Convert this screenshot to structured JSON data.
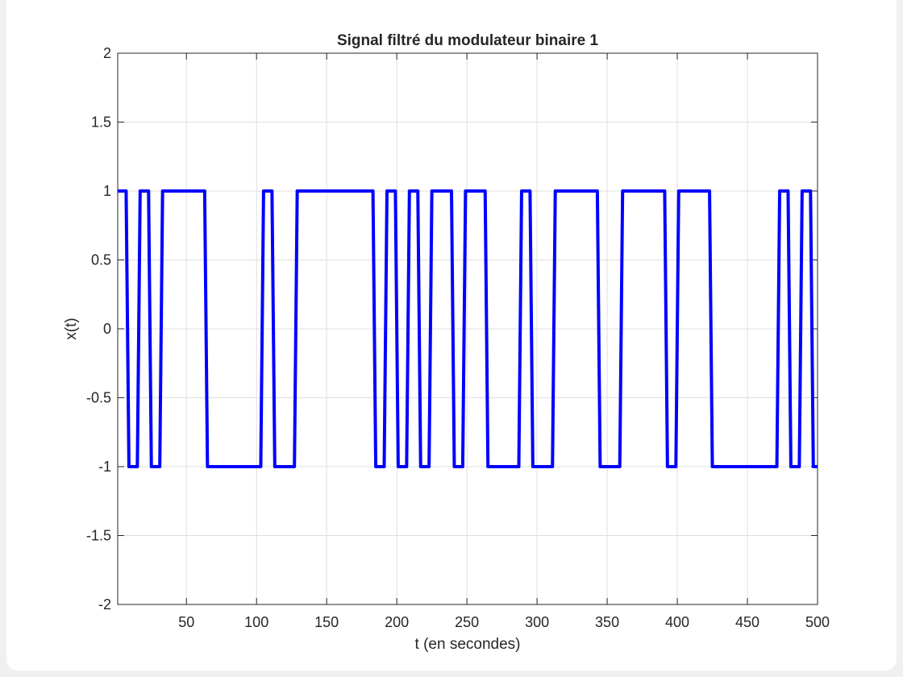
{
  "chart_data": {
    "type": "line",
    "title": "Signal filtré du modulateur binaire 1",
    "xlabel": "t (en secondes)",
    "ylabel": "x(t)",
    "xlim": [
      1,
      500
    ],
    "ylim": [
      -2,
      2
    ],
    "xticks": [
      50,
      100,
      150,
      200,
      250,
      300,
      350,
      400,
      450,
      500
    ],
    "xtick_labels": [
      "50",
      "100",
      "150",
      "200",
      "250",
      "300",
      "350",
      "400",
      "450",
      "500"
    ],
    "yticks": [
      -2,
      -1.5,
      -1,
      -0.5,
      0,
      0.5,
      1,
      1.5,
      2
    ],
    "ytick_labels": [
      "-2",
      "-1.5",
      "-1",
      "-0.5",
      "0",
      "0.5",
      "1",
      "1.5",
      "2"
    ],
    "grid": true,
    "series": [
      {
        "color": "#0000ff",
        "x": [
          1,
          7,
          9,
          15,
          17,
          23,
          25,
          31,
          33,
          63,
          65,
          103,
          105,
          111,
          113,
          127,
          129,
          183,
          185,
          191,
          193,
          199,
          201,
          207,
          209,
          215,
          217,
          223,
          225,
          239,
          241,
          247,
          249,
          263,
          265,
          287,
          289,
          295,
          297,
          311,
          313,
          343,
          345,
          359,
          361,
          391,
          393,
          399,
          401,
          423,
          425,
          471,
          473,
          479,
          481,
          487,
          489,
          495,
          497,
          500
        ],
        "y": [
          1,
          1,
          -1,
          -1,
          1,
          1,
          -1,
          -1,
          1,
          1,
          -1,
          -1,
          1,
          1,
          -1,
          -1,
          1,
          1,
          -1,
          -1,
          1,
          1,
          -1,
          -1,
          1,
          1,
          -1,
          -1,
          1,
          1,
          -1,
          -1,
          1,
          1,
          -1,
          -1,
          1,
          1,
          -1,
          -1,
          1,
          1,
          -1,
          -1,
          1,
          1,
          -1,
          -1,
          1,
          1,
          -1,
          -1,
          1,
          1,
          -1,
          -1,
          1,
          1,
          -1,
          -1
        ]
      }
    ]
  }
}
